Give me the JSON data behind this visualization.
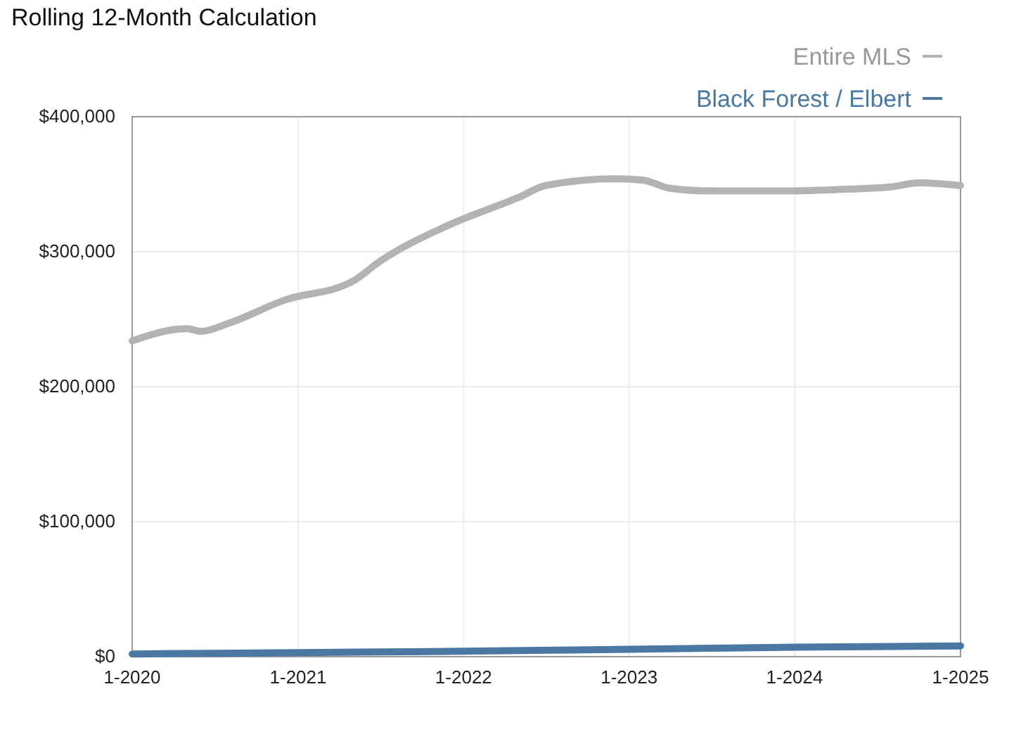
{
  "chart_data": {
    "type": "line",
    "title": "Rolling 12-Month Calculation",
    "xlim": [
      "2020-01",
      "2025-01"
    ],
    "xticks": [
      {
        "value": "2020-01",
        "label": "1-2020"
      },
      {
        "value": "2021-01",
        "label": "1-2021"
      },
      {
        "value": "2022-01",
        "label": "1-2022"
      },
      {
        "value": "2023-01",
        "label": "1-2023"
      },
      {
        "value": "2024-01",
        "label": "1-2024"
      },
      {
        "value": "2025-01",
        "label": "1-2025"
      }
    ],
    "ylim": [
      0,
      400000
    ],
    "yticks": [
      {
        "value": 0,
        "label": "$0"
      },
      {
        "value": 100000,
        "label": "$100,000"
      },
      {
        "value": 200000,
        "label": "$200,000"
      },
      {
        "value": 300000,
        "label": "$300,000"
      },
      {
        "value": 400000,
        "label": "$400,000"
      }
    ],
    "grid": true,
    "legend": "top right",
    "marker": "none",
    "line_style": "solid",
    "series": [
      {
        "name": "Entire MLS",
        "color": "#b3b3b3",
        "x": [
          "2020-01",
          "2020-05",
          "2020-06",
          "2020-08",
          "2020-12",
          "2021-05",
          "2021-07",
          "2021-12",
          "2022-05",
          "2022-07",
          "2022-12",
          "2023-02",
          "2023-04",
          "2023-07",
          "2023-12",
          "2024-04",
          "2024-08",
          "2024-10",
          "2025-01"
        ],
        "values": [
          234000,
          243000,
          241000,
          247000,
          264000,
          278000,
          293000,
          320000,
          340000,
          349000,
          354000,
          353000,
          347000,
          345000,
          345000,
          346000,
          348000,
          351000,
          349000
        ]
      },
      {
        "name": "Black Forest / Elbert",
        "color": "#4a78a3",
        "x": [
          "2020-01",
          "2021-01",
          "2022-01",
          "2023-01",
          "2024-01",
          "2025-01"
        ],
        "values": [
          2000,
          3000,
          4000,
          5500,
          7000,
          8000
        ]
      }
    ]
  }
}
